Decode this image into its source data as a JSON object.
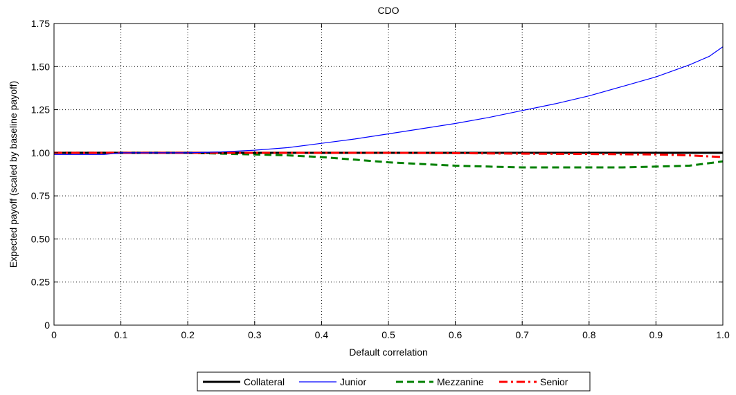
{
  "chart_data": {
    "type": "line",
    "title": "CDO",
    "xlabel": "Default correlation",
    "ylabel": "Expected payoff (scaled by baseline payoff)",
    "xlim": [
      0,
      1
    ],
    "ylim": [
      0,
      1.75
    ],
    "x_ticks": [
      "0",
      "0.1",
      "0.2",
      "0.3",
      "0.4",
      "0.5",
      "0.6",
      "0.7",
      "0.8",
      "0.9",
      "1.0"
    ],
    "y_ticks": [
      "0",
      "0.25",
      "0.50",
      "0.75",
      "1.00",
      "1.25",
      "1.50",
      "1.75"
    ],
    "grid": true,
    "legend_position": "bottom-center",
    "series": [
      {
        "name": "Collateral",
        "color": "#000000",
        "style": "solid",
        "x": [
          0,
          0.1,
          0.2,
          0.3,
          0.4,
          0.5,
          0.6,
          0.7,
          0.8,
          0.9,
          1.0
        ],
        "values": [
          1.0,
          1.0,
          1.0,
          1.0,
          1.0,
          1.0,
          1.0,
          1.0,
          1.0,
          1.0,
          1.0
        ]
      },
      {
        "name": "Junior",
        "color": "#0000ff",
        "style": "solid",
        "x": [
          0,
          0.05,
          0.075,
          0.1,
          0.2,
          0.25,
          0.3,
          0.35,
          0.4,
          0.45,
          0.5,
          0.55,
          0.6,
          0.65,
          0.7,
          0.75,
          0.8,
          0.85,
          0.9,
          0.95,
          0.98,
          1.0
        ],
        "values": [
          0.99,
          0.99,
          0.99,
          1.0,
          1.0,
          1.005,
          1.015,
          1.03,
          1.055,
          1.08,
          1.11,
          1.14,
          1.17,
          1.205,
          1.245,
          1.285,
          1.33,
          1.385,
          1.44,
          1.51,
          1.56,
          1.615
        ]
      },
      {
        "name": "Mezzanine",
        "color": "#008000",
        "style": "dashed",
        "x": [
          0,
          0.1,
          0.2,
          0.25,
          0.3,
          0.35,
          0.4,
          0.45,
          0.5,
          0.55,
          0.6,
          0.65,
          0.7,
          0.75,
          0.8,
          0.85,
          0.9,
          0.95,
          1.0
        ],
        "values": [
          1.0,
          1.0,
          1.0,
          0.995,
          0.99,
          0.985,
          0.975,
          0.96,
          0.945,
          0.935,
          0.925,
          0.92,
          0.915,
          0.915,
          0.915,
          0.915,
          0.92,
          0.925,
          0.95
        ]
      },
      {
        "name": "Senior",
        "color": "#ff0000",
        "style": "dashdot",
        "x": [
          0,
          0.1,
          0.2,
          0.3,
          0.4,
          0.5,
          0.6,
          0.7,
          0.8,
          0.9,
          0.95,
          1.0
        ],
        "values": [
          1.0,
          1.0,
          1.0,
          1.0,
          1.0,
          1.0,
          0.998,
          0.995,
          0.993,
          0.99,
          0.985,
          0.975
        ]
      }
    ]
  }
}
